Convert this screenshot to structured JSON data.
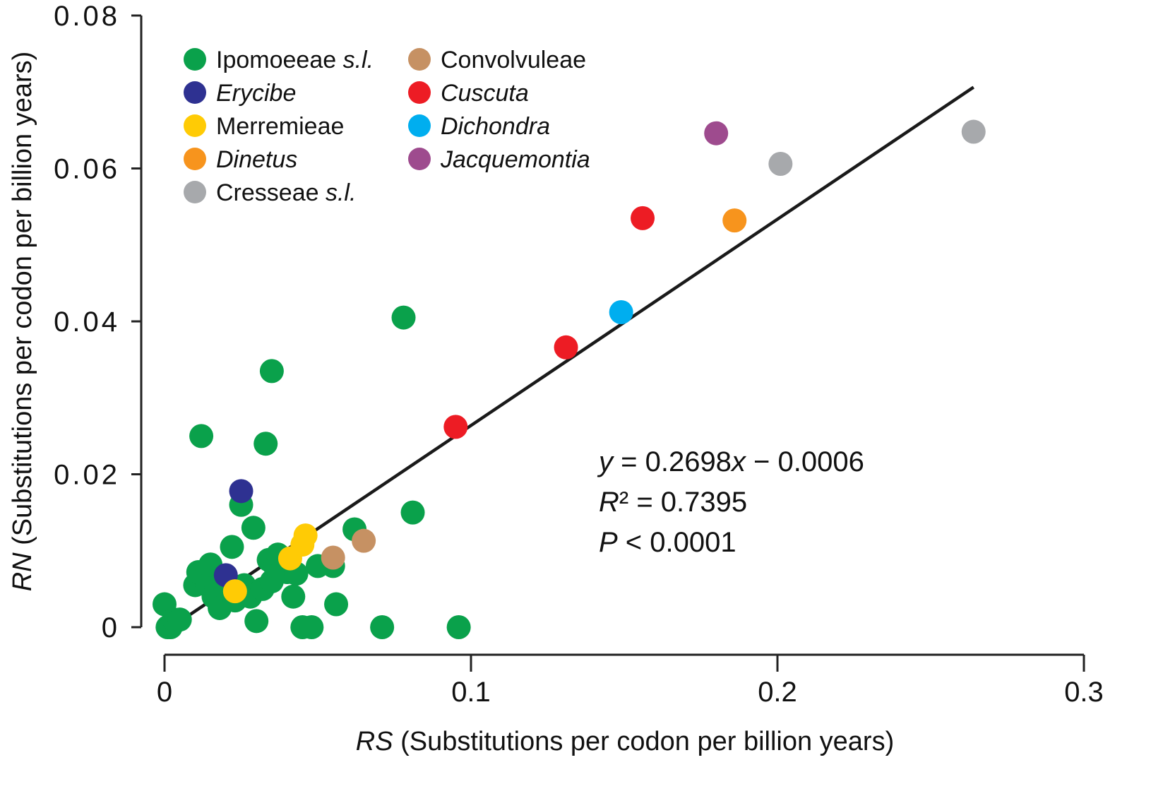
{
  "chart_data": {
    "type": "scatter",
    "xlabel_italic": "RS",
    "xlabel_rest": " (Substitutions per codon per billion years)",
    "ylabel_italic": "RN",
    "ylabel_rest": " (Substitutions per codon per billion years)",
    "xlim": [
      0,
      0.3
    ],
    "ylim": [
      0,
      0.08
    ],
    "x_ticks": [
      {
        "value": 0,
        "label": "0"
      },
      {
        "value": 0.1,
        "label": "0.1"
      },
      {
        "value": 0.2,
        "label": "0.2"
      },
      {
        "value": 0.3,
        "label": "0.3"
      }
    ],
    "y_ticks": [
      {
        "value": 0,
        "label": "0"
      },
      {
        "value": 0.02,
        "label": "0.02"
      },
      {
        "value": 0.04,
        "label": "0.04"
      },
      {
        "value": 0.06,
        "label": "0.06"
      },
      {
        "value": 0.08,
        "label": "0.08"
      }
    ],
    "legend_position": "top-left",
    "series": [
      {
        "name": "Ipomoeeae",
        "suffix": " s.l.",
        "name_italic": false,
        "color": "#0aa14b",
        "points": [
          [
            0.0,
            0.003
          ],
          [
            0.001,
            0.0
          ],
          [
            0.002,
            0.0
          ],
          [
            0.003,
            0.001
          ],
          [
            0.005,
            0.001
          ],
          [
            0.01,
            0.0055
          ],
          [
            0.011,
            0.0072
          ],
          [
            0.012,
            0.025
          ],
          [
            0.014,
            0.0075
          ],
          [
            0.014,
            0.0055
          ],
          [
            0.015,
            0.0082
          ],
          [
            0.016,
            0.004
          ],
          [
            0.017,
            0.0052
          ],
          [
            0.018,
            0.0025
          ],
          [
            0.02,
            0.005
          ],
          [
            0.022,
            0.0105
          ],
          [
            0.023,
            0.0035
          ],
          [
            0.025,
            0.016
          ],
          [
            0.026,
            0.0055
          ],
          [
            0.027,
            0.0045
          ],
          [
            0.028,
            0.004
          ],
          [
            0.029,
            0.013
          ],
          [
            0.03,
            0.0008
          ],
          [
            0.032,
            0.005
          ],
          [
            0.033,
            0.024
          ],
          [
            0.034,
            0.0088
          ],
          [
            0.035,
            0.006
          ],
          [
            0.036,
            0.008
          ],
          [
            0.037,
            0.0095
          ],
          [
            0.035,
            0.0335
          ],
          [
            0.04,
            0.0072
          ],
          [
            0.042,
            0.004
          ],
          [
            0.043,
            0.007
          ],
          [
            0.045,
            0.0
          ],
          [
            0.048,
            0.0
          ],
          [
            0.05,
            0.008
          ],
          [
            0.055,
            0.008
          ],
          [
            0.056,
            0.003
          ],
          [
            0.062,
            0.0128
          ],
          [
            0.071,
            0.0
          ],
          [
            0.078,
            0.0405
          ],
          [
            0.081,
            0.015
          ],
          [
            0.096,
            0.0
          ]
        ]
      },
      {
        "name": "Erycibe",
        "suffix": "",
        "name_italic": true,
        "color": "#2e3191",
        "points": [
          [
            0.02,
            0.0068
          ],
          [
            0.025,
            0.0178
          ]
        ]
      },
      {
        "name": "Merremieae",
        "suffix": "",
        "name_italic": false,
        "color": "#ffcb05",
        "points": [
          [
            0.023,
            0.0047
          ],
          [
            0.041,
            0.009
          ],
          [
            0.045,
            0.0108
          ],
          [
            0.046,
            0.012
          ]
        ]
      },
      {
        "name": "Dinetus",
        "suffix": "",
        "name_italic": true,
        "color": "#f7941d",
        "points": [
          [
            0.186,
            0.0532
          ]
        ]
      },
      {
        "name": "Cresseae",
        "suffix": " s.l.",
        "name_italic": false,
        "color": "#a7a9ac",
        "points": [
          [
            0.201,
            0.0606
          ],
          [
            0.264,
            0.0648
          ]
        ]
      },
      {
        "name": "Convolvuleae",
        "suffix": "",
        "name_italic": false,
        "color": "#c69163",
        "points": [
          [
            0.055,
            0.0091
          ],
          [
            0.065,
            0.0113
          ]
        ]
      },
      {
        "name": "Cuscuta",
        "suffix": "",
        "name_italic": true,
        "color": "#ed1c24",
        "points": [
          [
            0.095,
            0.0262
          ],
          [
            0.131,
            0.0366
          ],
          [
            0.156,
            0.0535
          ]
        ]
      },
      {
        "name": "Dichondra",
        "suffix": "",
        "name_italic": true,
        "color": "#00aeef",
        "points": [
          [
            0.149,
            0.0412
          ]
        ]
      },
      {
        "name": "Jacquemontia",
        "suffix": "",
        "name_italic": true,
        "color": "#9e4b8e",
        "points": [
          [
            0.18,
            0.0646
          ]
        ]
      }
    ],
    "regression": {
      "slope": 0.2698,
      "intercept": -0.0006,
      "x_range": [
        0.007,
        0.264
      ],
      "color": "#1a1a1a"
    },
    "annotations": {
      "equation_parts": [
        "y",
        " = 0.2698",
        "x",
        " − 0.0006"
      ],
      "r2_parts": [
        "R",
        "² = 0.7395"
      ],
      "p_parts": [
        "P",
        " < 0.0001"
      ]
    }
  }
}
